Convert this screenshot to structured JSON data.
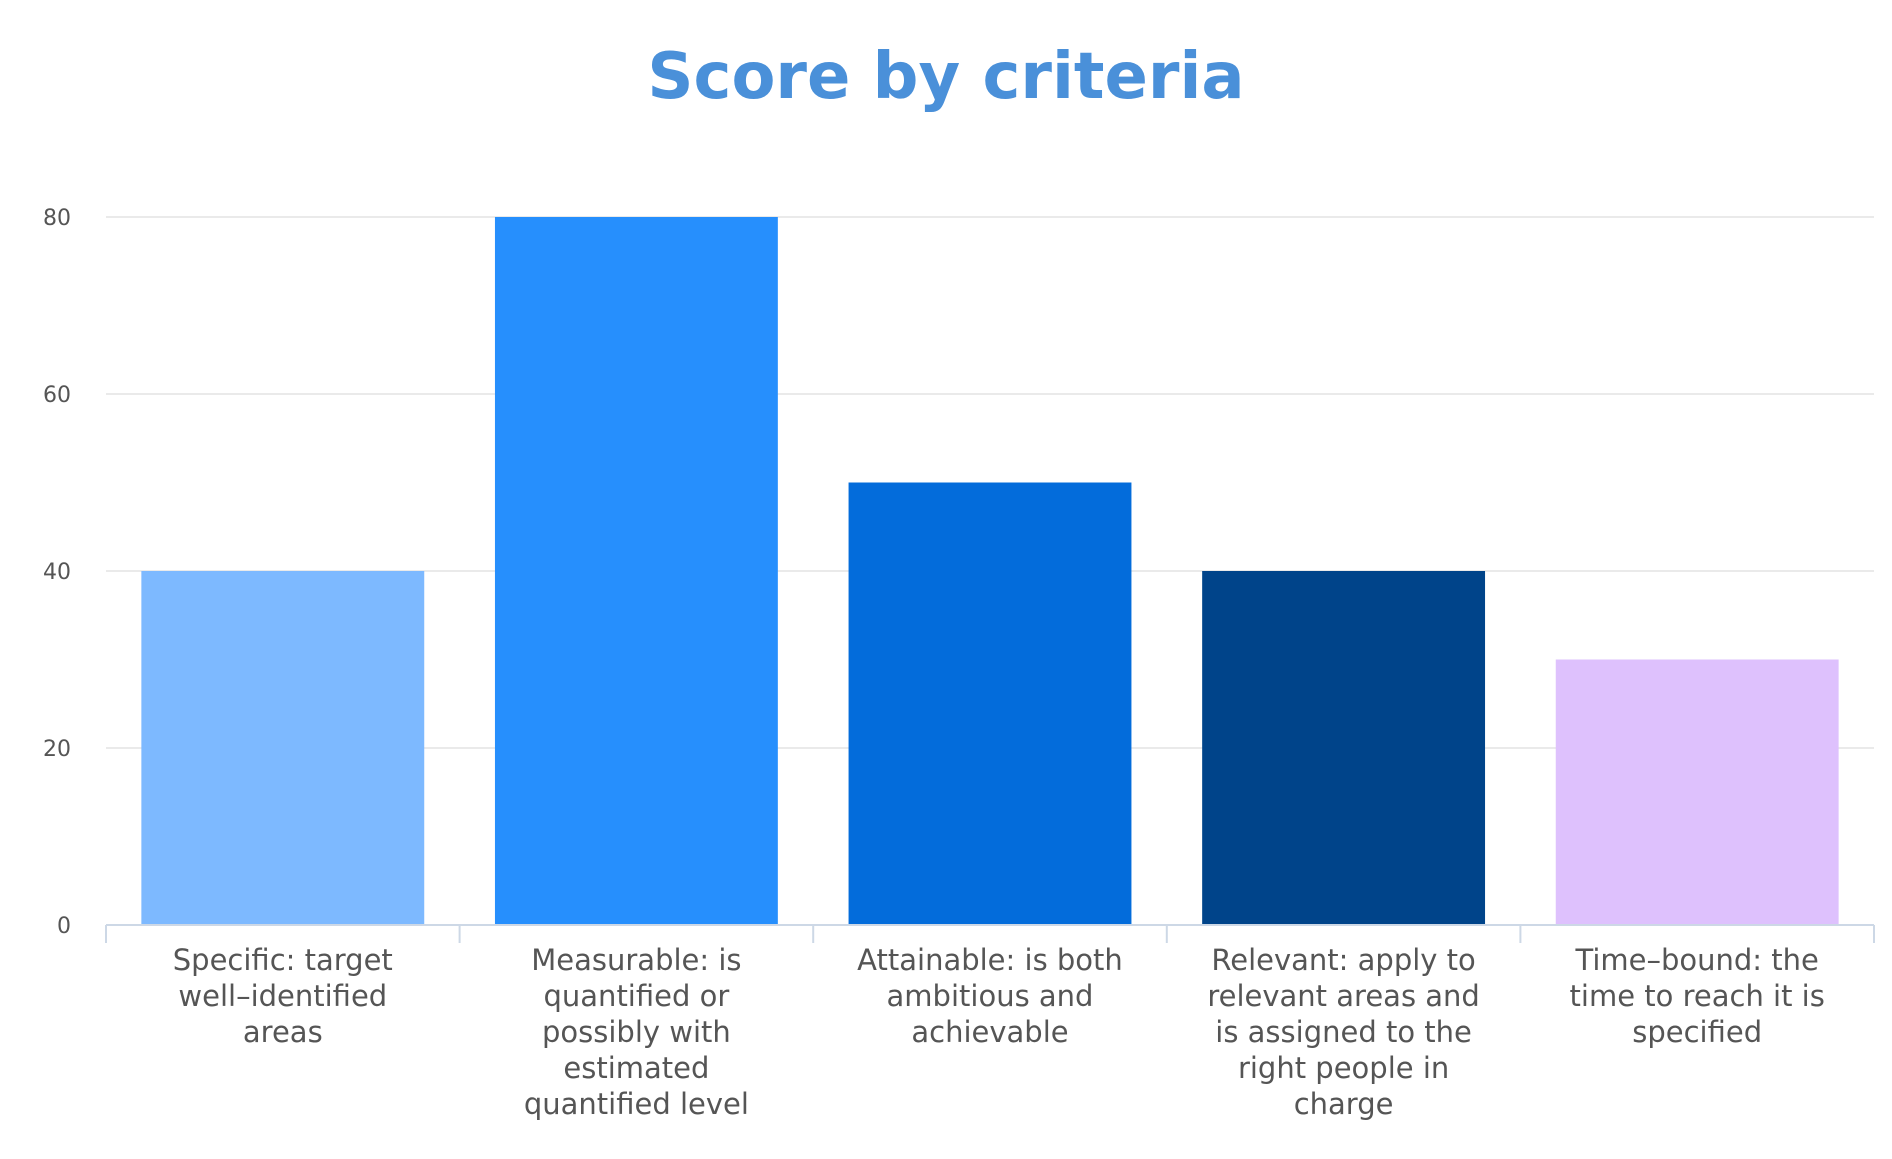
{
  "chart_data": {
    "type": "bar",
    "title": "Score by criteria",
    "xlabel": "",
    "ylabel": "",
    "ylim": [
      0,
      80
    ],
    "yticks": [
      0,
      20,
      40,
      60,
      80
    ],
    "grid": true,
    "legend": "none",
    "categories": [
      "Specific: target well–identified areas",
      "Measurable: is quantified or possibly with estimated quantified level",
      "Attainable: is both ambitious and achievable",
      "Relevant: apply to relevant areas and is assigned to the right people in charge",
      "Time–bound: the time to reach it is specified"
    ],
    "category_lines": [
      [
        "Specific: target",
        "well–identified",
        "areas"
      ],
      [
        "Measurable: is",
        "quantified or",
        "possibly with",
        "estimated",
        "quantified level"
      ],
      [
        "Attainable: is both",
        "ambitious and",
        "achievable"
      ],
      [
        "Relevant: apply to",
        "relevant areas and",
        "is assigned to the",
        "right people in",
        "charge"
      ],
      [
        "Time–bound: the",
        "time to reach it is",
        "specified"
      ]
    ],
    "values": [
      40,
      80,
      50,
      40,
      30
    ],
    "colors": [
      "#7db9ff",
      "#268ffd",
      "#036cdb",
      "#00448a",
      "#dec1fd"
    ]
  }
}
